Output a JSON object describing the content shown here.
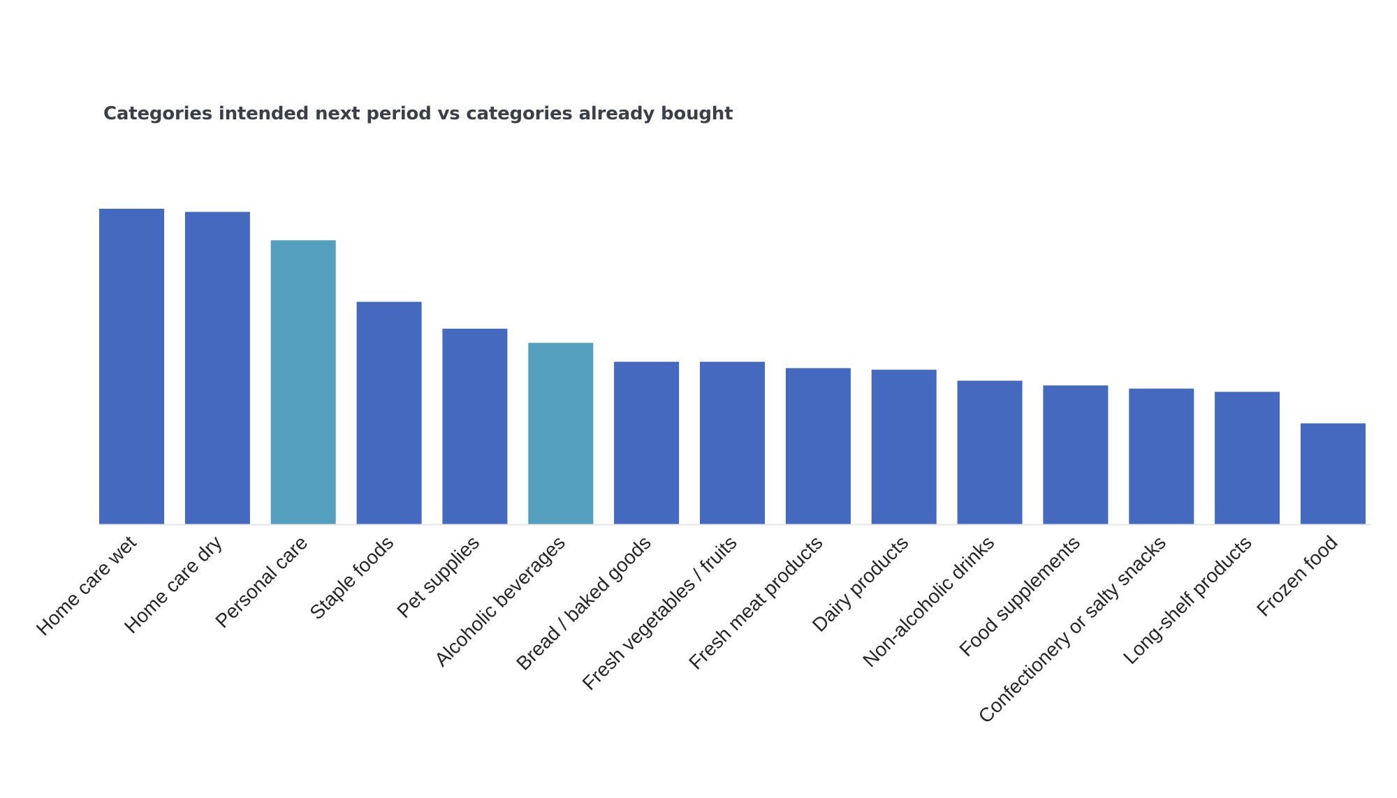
{
  "chart_data": {
    "type": "bar",
    "title": "Categories intended next period vs categories already bought",
    "xlabel": "",
    "ylabel": "",
    "grid": false,
    "legend": "none",
    "categories": [
      "Home care wet",
      "Home care dry",
      "Personal care",
      "Staple foods",
      "Pet supplies",
      "Alcoholic beverages",
      "Bread / baked goods",
      "Fresh vegetables / fruits",
      "Fresh meat products",
      "Dairy products",
      "Non-alcoholic drinks",
      "Food supplements",
      "Confectionery or salty snacks",
      "Long-shelf products",
      "Frozen food"
    ],
    "values": [
      100,
      99,
      90,
      70.5,
      62,
      57.5,
      51.5,
      51.5,
      49.5,
      49,
      45.5,
      44,
      43,
      42,
      32
    ],
    "highlighted": [
      false,
      false,
      true,
      false,
      false,
      true,
      false,
      false,
      false,
      false,
      false,
      false,
      false,
      false,
      false
    ],
    "ylim": [
      0,
      100
    ],
    "colors": {
      "bar": "#4469bf",
      "highlight": "#539fbd",
      "baseline": "#e6e6e6"
    }
  }
}
